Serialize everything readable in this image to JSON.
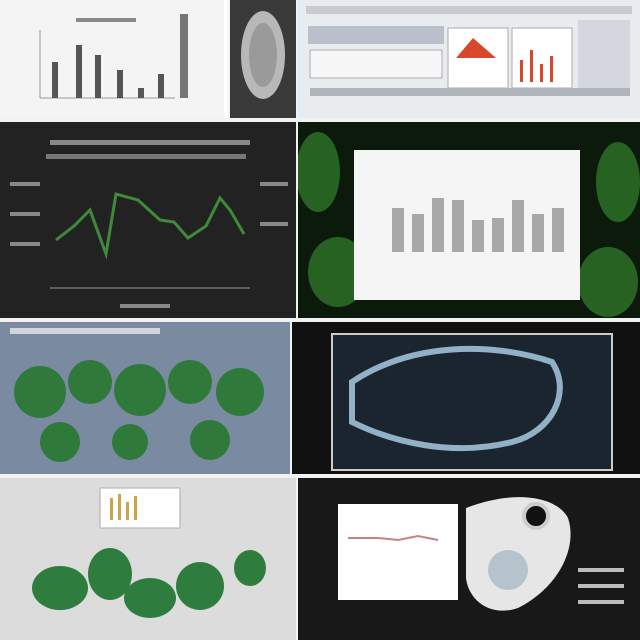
{
  "collage": {
    "panel_1": {
      "kind": "bar-chart-thumbnail",
      "background": "#f4f4f4"
    },
    "panel_2": {
      "kind": "specimen-photo",
      "background": "#3a3a3a"
    },
    "panel_3": {
      "kind": "dashboard-window",
      "background": "#e9ecef",
      "accent": "#d9472b"
    },
    "panel_4": {
      "kind": "line-chart",
      "background": "#222222",
      "line_color": "#3f8a3a"
    },
    "panel_5": {
      "kind": "bar-chart-over-foliage",
      "background": "#0b1a0b",
      "bar_color": "#a8a8a8"
    },
    "panel_6": {
      "kind": "plant-tissue-render",
      "background": "#7a8aa0",
      "tissue_color": "#2f7a3a"
    },
    "panel_7": {
      "kind": "xray-specimen-screen",
      "background": "#111111",
      "specimen_color": "#a8c9e0"
    },
    "panel_8": {
      "kind": "3d-plant-model-ui",
      "background": "#dcdcdc",
      "plant_color": "#2e7d3f"
    },
    "panel_9": {
      "kind": "microscope-screen",
      "background": "#181818",
      "device_color": "#e6e6e6"
    }
  }
}
